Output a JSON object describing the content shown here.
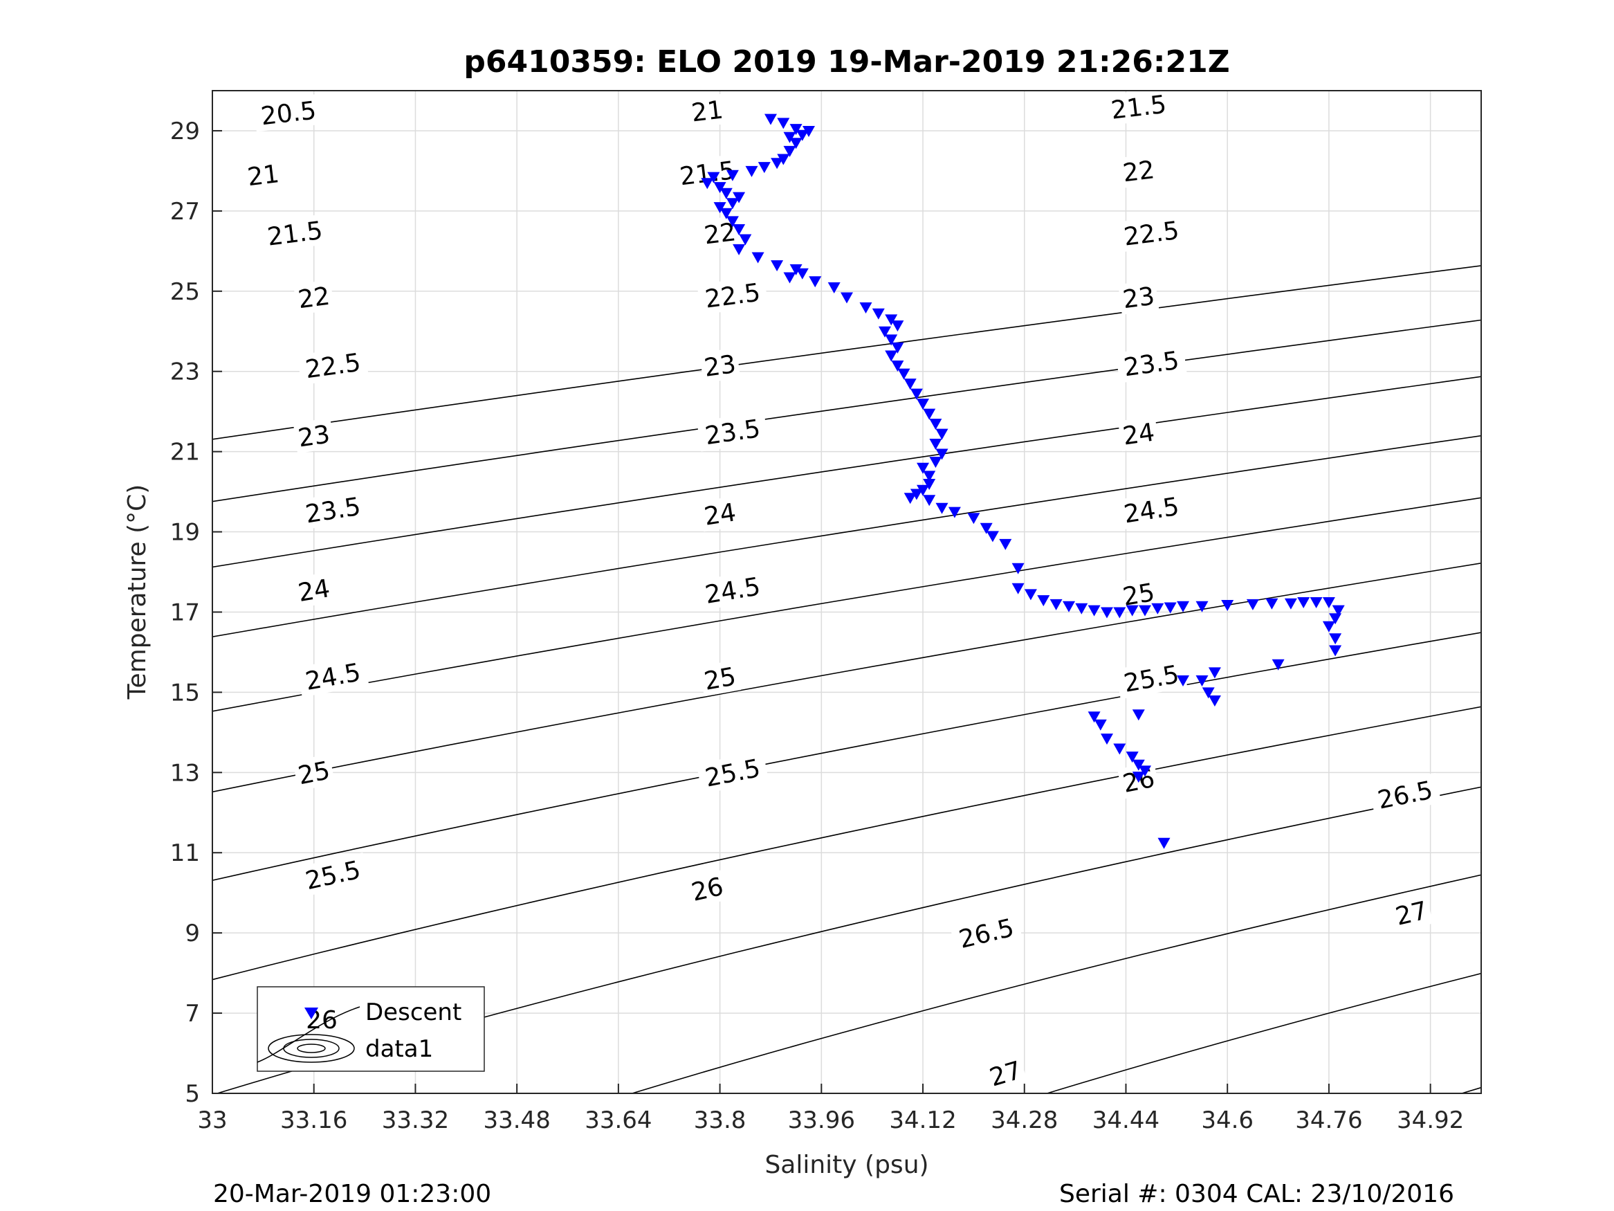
{
  "chart_data": {
    "type": "scatter",
    "title": "p6410359: ELO 2019 19-Mar-2019 21:26:21Z",
    "xlabel": "Salinity (psu)",
    "ylabel": "Temperature (°C)",
    "xlim": [
      33,
      35
    ],
    "ylim": [
      5,
      30
    ],
    "xticks": [
      "33",
      "33.16",
      "33.32",
      "33.48",
      "33.64",
      "33.8",
      "33.96",
      "34.12",
      "34.28",
      "34.44",
      "34.6",
      "34.76",
      "34.92"
    ],
    "yticks": [
      "5",
      "7",
      "9",
      "11",
      "13",
      "15",
      "17",
      "19",
      "21",
      "23",
      "25",
      "27",
      "29"
    ],
    "grid": true,
    "legend_position": "bottom-left",
    "legend": [
      {
        "label": "Descent",
        "marker": "down-triangle",
        "color": "#0000ff"
      },
      {
        "label": "data1",
        "marker": "contour",
        "color": "#000000"
      }
    ],
    "marker_color": "#0000ff",
    "contour_color": "#000000",
    "contour_levels": [
      "20.5",
      "21",
      "21.5",
      "22",
      "22.5",
      "23",
      "23.5",
      "24",
      "24.5",
      "25",
      "25.5",
      "26",
      "26.5",
      "27"
    ],
    "contour_labels": [
      {
        "text": "20.5",
        "s": 33.12,
        "t": 29.45
      },
      {
        "text": "21",
        "s": 33.08,
        "t": 27.9
      },
      {
        "text": "21.5",
        "s": 33.13,
        "t": 26.45
      },
      {
        "text": "22",
        "s": 33.16,
        "t": 24.85
      },
      {
        "text": "22.5",
        "s": 33.19,
        "t": 23.15
      },
      {
        "text": "23",
        "s": 33.16,
        "t": 21.4
      },
      {
        "text": "23.5",
        "s": 33.19,
        "t": 19.55
      },
      {
        "text": "24",
        "s": 33.16,
        "t": 17.55
      },
      {
        "text": "24.5",
        "s": 33.19,
        "t": 15.4
      },
      {
        "text": "25",
        "s": 33.16,
        "t": 13.0
      },
      {
        "text": "25.5",
        "s": 33.19,
        "t": 10.45
      },
      {
        "text": "26",
        "s": 33.17,
        "t": 7.2
      },
      {
        "text": "21",
        "s": 33.78,
        "t": 29.5
      },
      {
        "text": "21.5",
        "s": 33.78,
        "t": 27.95
      },
      {
        "text": "22",
        "s": 33.8,
        "t": 26.45
      },
      {
        "text": "22.5",
        "s": 33.82,
        "t": 24.9
      },
      {
        "text": "23",
        "s": 33.8,
        "t": 23.15
      },
      {
        "text": "23.5",
        "s": 33.82,
        "t": 21.5
      },
      {
        "text": "24",
        "s": 33.8,
        "t": 19.45
      },
      {
        "text": "24.5",
        "s": 33.82,
        "t": 17.55
      },
      {
        "text": "25",
        "s": 33.8,
        "t": 15.35
      },
      {
        "text": "25.5",
        "s": 33.82,
        "t": 13.0
      },
      {
        "text": "26",
        "s": 33.78,
        "t": 10.1
      },
      {
        "text": "26.5",
        "s": 34.22,
        "t": 9.0
      },
      {
        "text": "27",
        "s": 34.25,
        "t": 5.5
      },
      {
        "text": "21.5",
        "s": 34.46,
        "t": 29.6
      },
      {
        "text": "22",
        "s": 34.46,
        "t": 28.0
      },
      {
        "text": "22.5",
        "s": 34.48,
        "t": 26.45
      },
      {
        "text": "23",
        "s": 34.46,
        "t": 24.85
      },
      {
        "text": "23.5",
        "s": 34.48,
        "t": 23.2
      },
      {
        "text": "24",
        "s": 34.46,
        "t": 21.45
      },
      {
        "text": "24.5",
        "s": 34.48,
        "t": 19.55
      },
      {
        "text": "25",
        "s": 34.46,
        "t": 17.45
      },
      {
        "text": "25.5",
        "s": 34.48,
        "t": 15.35
      },
      {
        "text": "26",
        "s": 34.46,
        "t": 12.8
      },
      {
        "text": "26.5",
        "s": 34.88,
        "t": 12.45
      },
      {
        "text": "27",
        "s": 34.89,
        "t": 9.5
      }
    ],
    "series": [
      {
        "name": "Descent",
        "points": [
          [
            33.88,
            29.3
          ],
          [
            33.9,
            29.2
          ],
          [
            33.92,
            29.05
          ],
          [
            33.94,
            29.0
          ],
          [
            33.93,
            28.9
          ],
          [
            33.91,
            28.85
          ],
          [
            33.92,
            28.7
          ],
          [
            33.91,
            28.5
          ],
          [
            33.9,
            28.3
          ],
          [
            33.89,
            28.2
          ],
          [
            33.87,
            28.1
          ],
          [
            33.85,
            28.0
          ],
          [
            33.82,
            27.9
          ],
          [
            33.79,
            27.85
          ],
          [
            33.78,
            27.7
          ],
          [
            33.8,
            27.6
          ],
          [
            33.81,
            27.45
          ],
          [
            33.83,
            27.35
          ],
          [
            33.82,
            27.2
          ],
          [
            33.8,
            27.1
          ],
          [
            33.81,
            26.95
          ],
          [
            33.82,
            26.75
          ],
          [
            33.83,
            26.55
          ],
          [
            33.84,
            26.3
          ],
          [
            33.83,
            26.05
          ],
          [
            33.86,
            25.85
          ],
          [
            33.89,
            25.65
          ],
          [
            33.92,
            25.55
          ],
          [
            33.93,
            25.45
          ],
          [
            33.91,
            25.35
          ],
          [
            33.95,
            25.25
          ],
          [
            33.98,
            25.1
          ],
          [
            34.0,
            24.85
          ],
          [
            34.03,
            24.6
          ],
          [
            34.05,
            24.45
          ],
          [
            34.07,
            24.3
          ],
          [
            34.08,
            24.15
          ],
          [
            34.06,
            24.0
          ],
          [
            34.07,
            23.8
          ],
          [
            34.08,
            23.6
          ],
          [
            34.07,
            23.4
          ],
          [
            34.08,
            23.15
          ],
          [
            34.09,
            22.95
          ],
          [
            34.1,
            22.7
          ],
          [
            34.11,
            22.45
          ],
          [
            34.12,
            22.2
          ],
          [
            34.13,
            21.95
          ],
          [
            34.14,
            21.7
          ],
          [
            34.15,
            21.45
          ],
          [
            34.14,
            21.2
          ],
          [
            34.15,
            20.95
          ],
          [
            34.14,
            20.75
          ],
          [
            34.12,
            20.6
          ],
          [
            34.13,
            20.4
          ],
          [
            34.13,
            20.2
          ],
          [
            34.12,
            20.05
          ],
          [
            34.11,
            19.95
          ],
          [
            34.1,
            19.85
          ],
          [
            34.13,
            19.8
          ],
          [
            34.15,
            19.6
          ],
          [
            34.17,
            19.5
          ],
          [
            34.2,
            19.35
          ],
          [
            34.22,
            19.1
          ],
          [
            34.23,
            18.9
          ],
          [
            34.25,
            18.7
          ],
          [
            34.27,
            18.1
          ],
          [
            34.27,
            17.6
          ],
          [
            34.29,
            17.45
          ],
          [
            34.31,
            17.3
          ],
          [
            34.33,
            17.2
          ],
          [
            34.35,
            17.15
          ],
          [
            34.37,
            17.1
          ],
          [
            34.39,
            17.05
          ],
          [
            34.41,
            17.0
          ],
          [
            34.43,
            17.0
          ],
          [
            34.45,
            17.05
          ],
          [
            34.47,
            17.05
          ],
          [
            34.49,
            17.1
          ],
          [
            34.51,
            17.12
          ],
          [
            34.53,
            17.15
          ],
          [
            34.56,
            17.15
          ],
          [
            34.6,
            17.18
          ],
          [
            34.64,
            17.2
          ],
          [
            34.67,
            17.22
          ],
          [
            34.7,
            17.22
          ],
          [
            34.72,
            17.25
          ],
          [
            34.74,
            17.25
          ],
          [
            34.76,
            17.25
          ],
          [
            34.775,
            17.05
          ],
          [
            34.77,
            16.85
          ],
          [
            34.76,
            16.65
          ],
          [
            34.77,
            16.35
          ],
          [
            34.77,
            16.05
          ],
          [
            34.68,
            15.7
          ],
          [
            34.58,
            15.5
          ],
          [
            34.56,
            15.3
          ],
          [
            34.57,
            15.0
          ],
          [
            34.58,
            14.8
          ],
          [
            34.53,
            15.3
          ],
          [
            34.46,
            14.45
          ],
          [
            34.39,
            14.4
          ],
          [
            34.4,
            14.2
          ],
          [
            34.41,
            13.85
          ],
          [
            34.43,
            13.6
          ],
          [
            34.45,
            13.4
          ],
          [
            34.46,
            13.2
          ],
          [
            34.47,
            13.05
          ],
          [
            34.46,
            12.9
          ],
          [
            34.5,
            11.25
          ]
        ]
      }
    ]
  },
  "footer": {
    "left": "20-Mar-2019 01:23:00",
    "right": "Serial #: 0304  CAL: 23/10/2016"
  }
}
